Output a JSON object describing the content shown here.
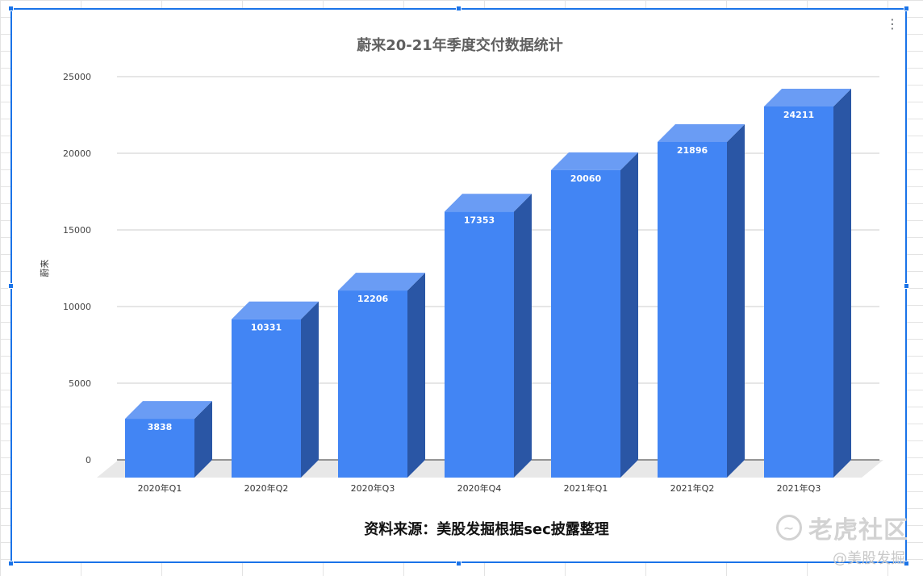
{
  "menu_icon": "more-vert-icon",
  "watermark": {
    "icon": "tiger-logo-icon",
    "text": "老虎社区",
    "handle": "@美股发掘"
  },
  "chart_data": {
    "type": "bar",
    "title": "蔚来20-21年季度交付数据统计",
    "subtitle": "资料来源：美股发掘根据sec披露整理",
    "xlabel": "",
    "ylabel": "蔚来",
    "ylim": [
      0,
      25000
    ],
    "yticks": [
      0,
      5000,
      10000,
      15000,
      20000,
      25000
    ],
    "categories": [
      "2020年Q1",
      "2020年Q2",
      "2020年Q3",
      "2020年Q4",
      "2021年Q1",
      "2021年Q2",
      "2021年Q3"
    ],
    "series": [
      {
        "values": [
          3838,
          10331,
          12206,
          17353,
          20060,
          21896,
          24211
        ]
      }
    ],
    "grid": true,
    "legend": "none",
    "colors": {
      "front": "#4285f4",
      "top": "#6a9cf4",
      "side": "#2a56a5",
      "floor": "#e8e8e8"
    }
  }
}
